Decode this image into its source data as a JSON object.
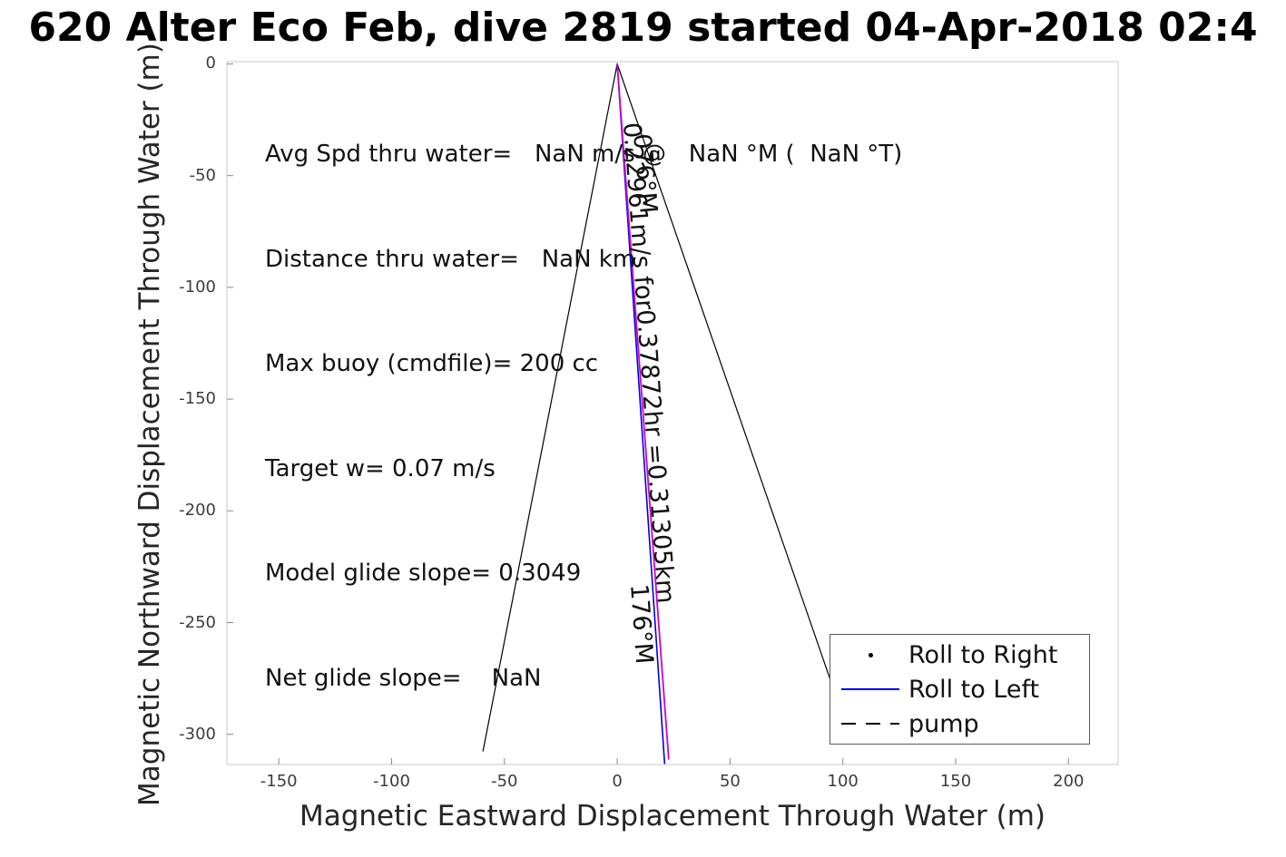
{
  "title": "620 Alter Eco Feb, dive 2819 started 04-Apr-2018 02:4",
  "axes": {
    "xlabel": "Magnetic Eastward Displacement Through Water (m)",
    "ylabel": "Magnetic Northward Displacement Through Water (m)"
  },
  "stats_box": {
    "lines": [
      "Avg Spd thru water=   NaN m/s @   NaN °M (  NaN °T)",
      "Distance thru water=   NaN km",
      "Max buoy (cmdfile)= 200 cc",
      "Target w= 0.07 m/s",
      "Model glide slope= 0.3049",
      "Net glide slope=    NaN"
    ]
  },
  "track_labels": {
    "heading_top": "076°M",
    "speed_distance": "0.22961m/s for0.37872hr =0.31305km",
    "heading_bottom": "176°M"
  },
  "legend": {
    "items": [
      {
        "label": "Roll to Right",
        "marker": "dot",
        "color": "#000000"
      },
      {
        "label": "Roll to Left",
        "marker": "solid-line",
        "color": "#0000dd"
      },
      {
        "label": "pump",
        "marker": "dashed-line",
        "color": "#000000"
      }
    ]
  },
  "chart_data": {
    "type": "line",
    "title": "620 Alter Eco Feb, dive 2819 started 04-Apr-2018 02:4",
    "xlabel": "Magnetic Eastward Displacement Through Water (m)",
    "ylabel": "Magnetic Northward Displacement Through Water (m)",
    "xlim": [
      -173,
      222
    ],
    "ylim": [
      -313.5,
      1
    ],
    "x_ticks": [
      -150,
      -100,
      -50,
      0,
      50,
      100,
      150,
      200
    ],
    "y_ticks": [
      0,
      -50,
      -100,
      -150,
      -200,
      -250,
      -300
    ],
    "grid": false,
    "legend_position": "bottom-right",
    "series": [
      {
        "name": "dive-track-left",
        "color": "#000000",
        "style": "solid",
        "width": 1.2,
        "points": [
          [
            0,
            0
          ],
          [
            -59.5,
            -307.5
          ]
        ]
      },
      {
        "name": "climb-track-right",
        "color": "#000000",
        "style": "solid",
        "width": 1.2,
        "points": [
          [
            0,
            0
          ],
          [
            97,
            -283
          ]
        ]
      },
      {
        "name": "roll-to-left-line",
        "color": "#0000dd",
        "style": "solid",
        "width": 1.6,
        "points": [
          [
            0,
            0
          ],
          [
            21.0,
            -313.0
          ]
        ]
      },
      {
        "name": "net-displacement-line",
        "color": "#cc00cc",
        "style": "solid",
        "width": 1.8,
        "points": [
          [
            0,
            0
          ],
          [
            22.8,
            -311.0
          ]
        ]
      }
    ],
    "annotations": {
      "stats_lines": [
        "Avg Spd thru water=   NaN m/s @   NaN °M (  NaN °T)",
        "Distance thru water=   NaN km",
        "Max buoy (cmdfile)= 200 cc",
        "Target w= 0.07 m/s",
        "Model glide slope= 0.3049",
        "Net glide slope=    NaN"
      ],
      "track_labels": [
        "076°M",
        "0.22961m/s for0.37872hr =0.31305km",
        "176°M"
      ]
    }
  }
}
